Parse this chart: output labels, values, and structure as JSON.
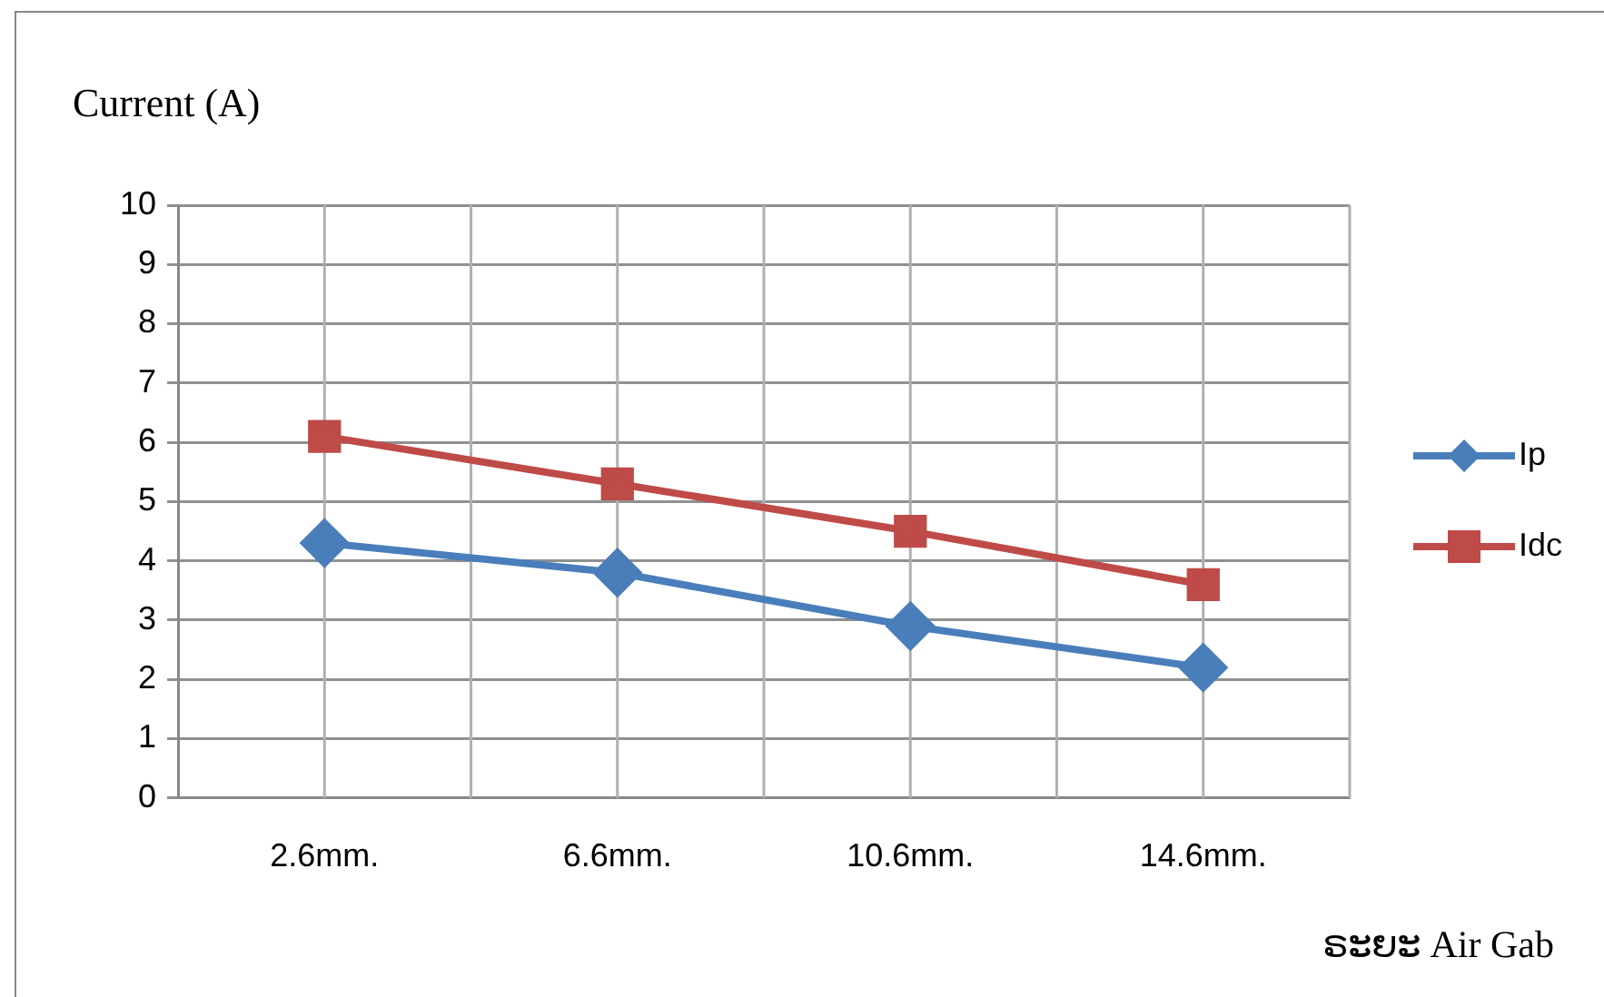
{
  "chart_data": {
    "type": "line",
    "ylabel": "Current (A)",
    "xlabel": "ຣະຍະ Air Gab",
    "categories": [
      "2.6mm.",
      "6.6mm.",
      "10.6mm.",
      "14.6mm."
    ],
    "series": [
      {
        "name": "Ip",
        "color": "#4a7ebb",
        "values": [
          4.3,
          3.8,
          2.9,
          2.2
        ],
        "marker": "diamond"
      },
      {
        "name": "Idc",
        "color": "#be4b48",
        "values": [
          6.1,
          5.3,
          4.5,
          3.6
        ],
        "marker": "square"
      }
    ],
    "ylim": [
      0,
      10
    ],
    "yticks": [
      0,
      1,
      2,
      3,
      4,
      5,
      6,
      7,
      8,
      9,
      10
    ],
    "grid": true,
    "legend": "right",
    "line_style": "solid"
  }
}
